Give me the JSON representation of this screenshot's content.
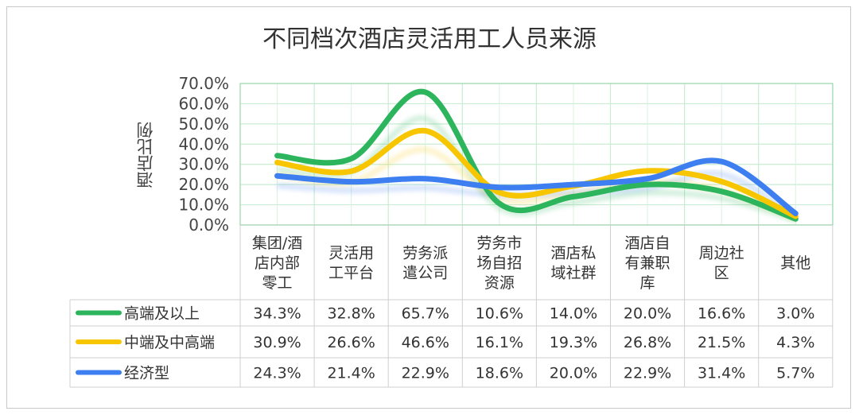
{
  "chart_data": {
    "type": "line",
    "title": "不同档次酒店灵活用工人员来源",
    "ylabel": "酒店比例",
    "ylim": [
      0,
      70
    ],
    "yticks": [
      "0.0%",
      "10.0%",
      "20.0%",
      "30.0%",
      "40.0%",
      "50.0%",
      "60.0%",
      "70.0%"
    ],
    "grid": true,
    "smooth": true,
    "legend": "data-table",
    "categories": [
      "集团/酒店内部零工",
      "灵活用工平台",
      "劳务派遣公司",
      "劳务市场自招资源",
      "酒店私域社群",
      "酒店自有兼职库",
      "周边社区",
      "其他"
    ],
    "category_lines": [
      [
        "集团/酒",
        "店内部",
        "零工"
      ],
      [
        "灵活用",
        "工平台"
      ],
      [
        "劳务派",
        "遣公司"
      ],
      [
        "劳务市",
        "场自招",
        "资源"
      ],
      [
        "酒店私",
        "域社群"
      ],
      [
        "酒店自",
        "有兼职",
        "库"
      ],
      [
        "周边社",
        "区"
      ],
      [
        "其他"
      ]
    ],
    "series": [
      {
        "name": "高端及以上",
        "color": "#2db55d",
        "values": [
          34.3,
          32.8,
          65.7,
          10.6,
          14.0,
          20.0,
          16.6,
          3.0
        ],
        "labels": [
          "34.3%",
          "32.8%",
          "65.7%",
          "10.6%",
          "14.0%",
          "20.0%",
          "16.6%",
          "3.0%"
        ]
      },
      {
        "name": "中端及中高端",
        "color": "#f7c600",
        "values": [
          30.9,
          26.6,
          46.6,
          16.1,
          19.3,
          26.8,
          21.5,
          4.3
        ],
        "labels": [
          "30.9%",
          "26.6%",
          "46.6%",
          "16.1%",
          "19.3%",
          "26.8%",
          "21.5%",
          "4.3%"
        ]
      },
      {
        "name": "经济型",
        "color": "#3d7ef0",
        "values": [
          24.3,
          21.4,
          22.9,
          18.6,
          20.0,
          22.9,
          31.4,
          5.7
        ],
        "labels": [
          "24.3%",
          "21.4%",
          "22.9%",
          "18.6%",
          "20.0%",
          "22.9%",
          "31.4%",
          "5.7%"
        ]
      }
    ]
  }
}
